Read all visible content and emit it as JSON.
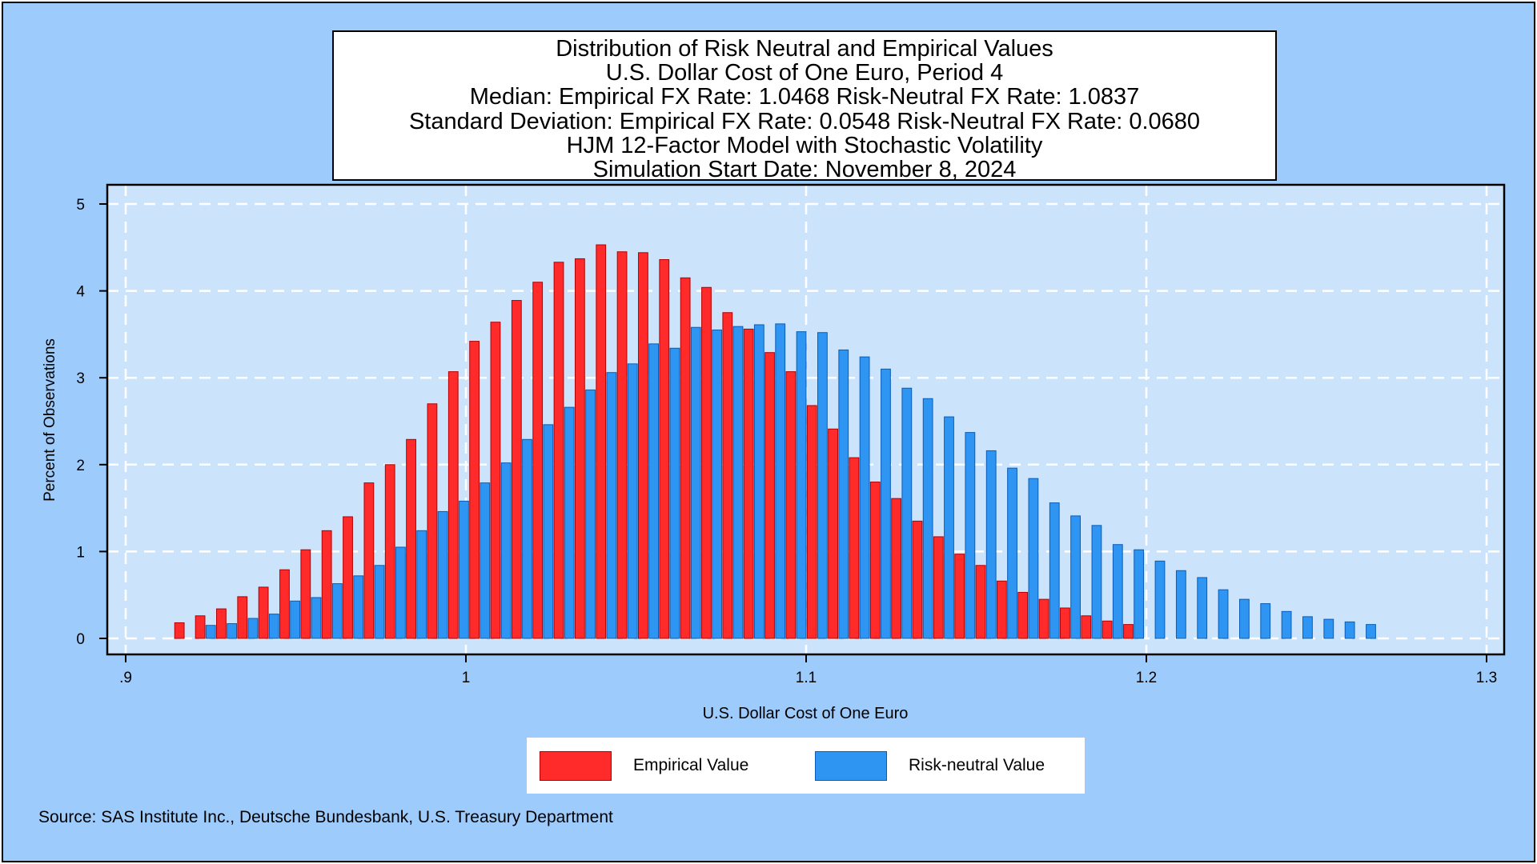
{
  "title_lines": [
    "Distribution of Risk Neutral and Empirical Values",
    "U.S. Dollar Cost of One Euro, Period 4",
    "Median: Empirical FX Rate:  1.0468   Risk-Neutral FX Rate:  1.0837",
    "Standard Deviation: Empirical FX Rate:  0.0548   Risk-Neutral FX Rate:  0.0680",
    "HJM 12-Factor Model with Stochastic Volatility",
    "Simulation Start Date: November 8, 2024"
  ],
  "source": "Source: SAS Institute Inc., Deutsche Bundesbank, U.S. Treasury Department",
  "colors": {
    "background": "#9dcbfb",
    "plot_area": "#cce4fb",
    "empirical": "#ff2a2a",
    "empirical_edge": "#b30000",
    "risk_neutral": "#2e96f2",
    "risk_neutral_edge": "#0a5cb8",
    "grid": "#ffffff"
  },
  "chart_data": {
    "type": "bar",
    "xlabel": "U.S. Dollar Cost of One Euro",
    "ylabel": "Percent of Observations",
    "xlim": [
      0.9,
      1.3
    ],
    "ylim": [
      0,
      5
    ],
    "xticks": [
      {
        "value": 0.9,
        "label": ".9"
      },
      {
        "value": 1.0,
        "label": "1"
      },
      {
        "value": 1.1,
        "label": "1.1"
      },
      {
        "value": 1.2,
        "label": "1.2"
      },
      {
        "value": 1.3,
        "label": "1.3"
      }
    ],
    "yticks": [
      0,
      1,
      2,
      3,
      4,
      5
    ],
    "grid": true,
    "legend_position": "bottom",
    "series": [
      {
        "name": "Empirical Value",
        "x": [
          0.9158,
          0.9219,
          0.9281,
          0.9343,
          0.9405,
          0.9467,
          0.9529,
          0.9591,
          0.9653,
          0.9715,
          0.9777,
          0.9839,
          0.9901,
          0.9963,
          1.0025,
          1.0087,
          1.0149,
          1.0211,
          1.0273,
          1.0335,
          1.0397,
          1.0459,
          1.0521,
          1.0583,
          1.0645,
          1.0707,
          1.0769,
          1.0831,
          1.0893,
          1.0955,
          1.1017,
          1.1079,
          1.1141,
          1.1203,
          1.1265,
          1.1327,
          1.1389,
          1.1451,
          1.1513,
          1.1575,
          1.1637,
          1.1699,
          1.1761,
          1.1823,
          1.1885,
          1.1947
        ],
        "values": [
          0.18,
          0.26,
          0.34,
          0.48,
          0.59,
          0.79,
          1.02,
          1.24,
          1.4,
          1.79,
          2.0,
          2.29,
          2.7,
          3.07,
          3.42,
          3.64,
          3.89,
          4.1,
          4.33,
          4.37,
          4.53,
          4.45,
          4.44,
          4.36,
          4.15,
          4.04,
          3.75,
          3.56,
          3.29,
          3.07,
          2.68,
          2.41,
          2.08,
          1.8,
          1.61,
          1.35,
          1.17,
          0.97,
          0.84,
          0.66,
          0.53,
          0.45,
          0.35,
          0.26,
          0.2,
          0.16
        ]
      },
      {
        "name": "Risk-neutral Value",
        "x": [
          0.925,
          0.9312,
          0.9374,
          0.9436,
          0.9498,
          0.956,
          0.9622,
          0.9684,
          0.9746,
          0.9808,
          0.987,
          0.9932,
          0.9994,
          1.0056,
          1.0118,
          1.018,
          1.0242,
          1.0304,
          1.0366,
          1.0428,
          1.049,
          1.0552,
          1.0614,
          1.0676,
          1.0738,
          1.08,
          1.0862,
          1.0924,
          1.0986,
          1.1048,
          1.111,
          1.1172,
          1.1234,
          1.1296,
          1.1358,
          1.142,
          1.1482,
          1.1544,
          1.1606,
          1.1668,
          1.173,
          1.1792,
          1.1854,
          1.1916,
          1.1978,
          1.204,
          1.2102,
          1.2164,
          1.2226,
          1.2288,
          1.235,
          1.2412,
          1.2474,
          1.2536,
          1.2598,
          1.266
        ],
        "values": [
          0.15,
          0.17,
          0.23,
          0.28,
          0.43,
          0.47,
          0.63,
          0.72,
          0.84,
          1.05,
          1.24,
          1.46,
          1.58,
          1.79,
          2.02,
          2.29,
          2.46,
          2.66,
          2.86,
          3.06,
          3.16,
          3.39,
          3.34,
          3.58,
          3.55,
          3.59,
          3.61,
          3.62,
          3.53,
          3.52,
          3.32,
          3.24,
          3.1,
          2.88,
          2.76,
          2.55,
          2.37,
          2.16,
          1.96,
          1.84,
          1.56,
          1.41,
          1.3,
          1.08,
          1.02,
          0.89,
          0.78,
          0.7,
          0.56,
          0.45,
          0.4,
          0.31,
          0.25,
          0.22,
          0.19,
          0.16
        ]
      }
    ]
  }
}
